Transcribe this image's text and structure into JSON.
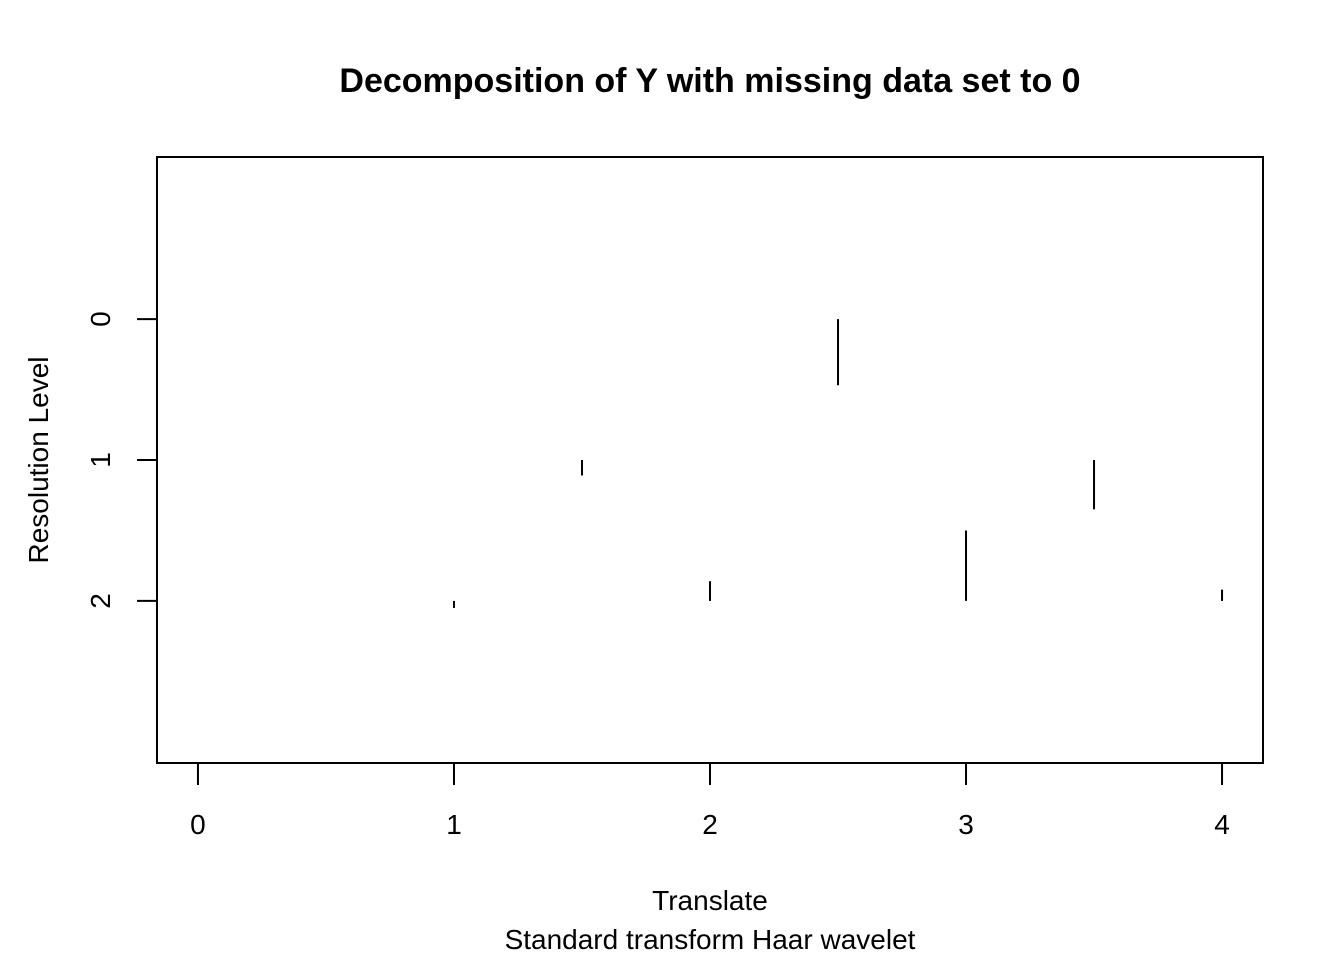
{
  "chart_data": {
    "type": "wavelet-coefficient-plot",
    "title": "Decomposition of Y with missing data set to 0",
    "xlabel": "Translate",
    "ylabel": "Resolution Level",
    "subtitle": "Standard transform Haar wavelet",
    "x_ticks": [
      "0",
      "1",
      "2",
      "3",
      "4"
    ],
    "y_ticks": [
      "0",
      "1",
      "2"
    ],
    "xlim": [
      -0.16,
      4.16
    ],
    "ylim_levels": [
      -1.15,
      3.15
    ],
    "coefficients": [
      {
        "level": 0,
        "x": 2.5,
        "length": 0.47
      },
      {
        "level": 1,
        "x": 1.5,
        "length": 0.11
      },
      {
        "level": 1,
        "x": 3.5,
        "length": 0.35
      },
      {
        "level": 2,
        "x": 1.0,
        "length": 0.05
      },
      {
        "level": 2,
        "x": 2.0,
        "length": -0.14
      },
      {
        "level": 2,
        "x": 3.0,
        "length": -0.5
      },
      {
        "level": 2,
        "x": 4.0,
        "length": -0.08
      }
    ]
  }
}
